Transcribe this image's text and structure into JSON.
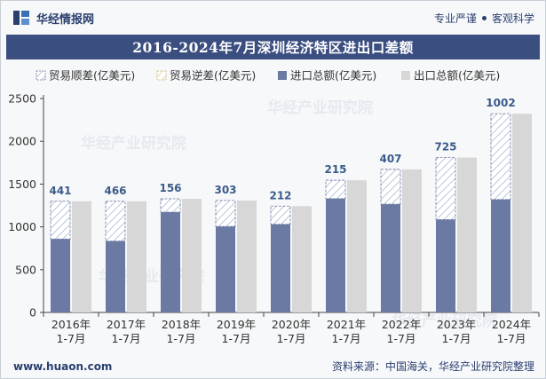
{
  "header": {
    "brand": "华经情报网",
    "tagline_left": "专业严谨",
    "tagline_right": "客观科学"
  },
  "footer": {
    "url": "www.huaon.com",
    "source": "资料来源：中国海关，华经产业研究院整理"
  },
  "watermark": "华经产业研究院",
  "colors": {
    "title_bg": "#3b4e80",
    "import": "#6b7aa3",
    "export": "#d7d7d7",
    "surplus_hatch": "#a9b8d0",
    "label": "#3b5b8a"
  },
  "chart_data": {
    "type": "bar",
    "title": "2016-2024年7月深圳经济特区进出口差额",
    "categories": [
      [
        "2016年",
        "1-7月"
      ],
      [
        "2017年",
        "1-7月"
      ],
      [
        "2018年",
        "1-7月"
      ],
      [
        "2019年",
        "1-7月"
      ],
      [
        "2020年",
        "1-7月"
      ],
      [
        "2021年",
        "1-7月"
      ],
      [
        "2022年",
        "1-7月"
      ],
      [
        "2023年",
        "1-7月"
      ],
      [
        "2024年",
        "1-7月"
      ]
    ],
    "legend": [
      "贸易顺差(亿美元)",
      "贸易逆差(亿美元)",
      "进口总额(亿美元)",
      "出口总额(亿美元)"
    ],
    "legend_position": "top",
    "series": [
      {
        "name": "贸易顺差(亿美元)",
        "values": [
          441,
          466,
          156,
          303,
          212,
          215,
          407,
          725,
          1002
        ]
      },
      {
        "name": "贸易逆差(亿美元)",
        "values": [
          0,
          0,
          0,
          0,
          0,
          0,
          0,
          0,
          0
        ]
      },
      {
        "name": "进口总额(亿美元)",
        "values": [
          858,
          833,
          1172,
          1005,
          1030,
          1330,
          1265,
          1085,
          1320
        ]
      },
      {
        "name": "出口总额(亿美元)",
        "values": [
          1299,
          1299,
          1328,
          1308,
          1242,
          1545,
          1672,
          1810,
          2322
        ]
      }
    ],
    "ylim": [
      0,
      2500
    ],
    "yticks": [
      0,
      500,
      1000,
      1500,
      2000,
      2500
    ],
    "grid": false
  }
}
